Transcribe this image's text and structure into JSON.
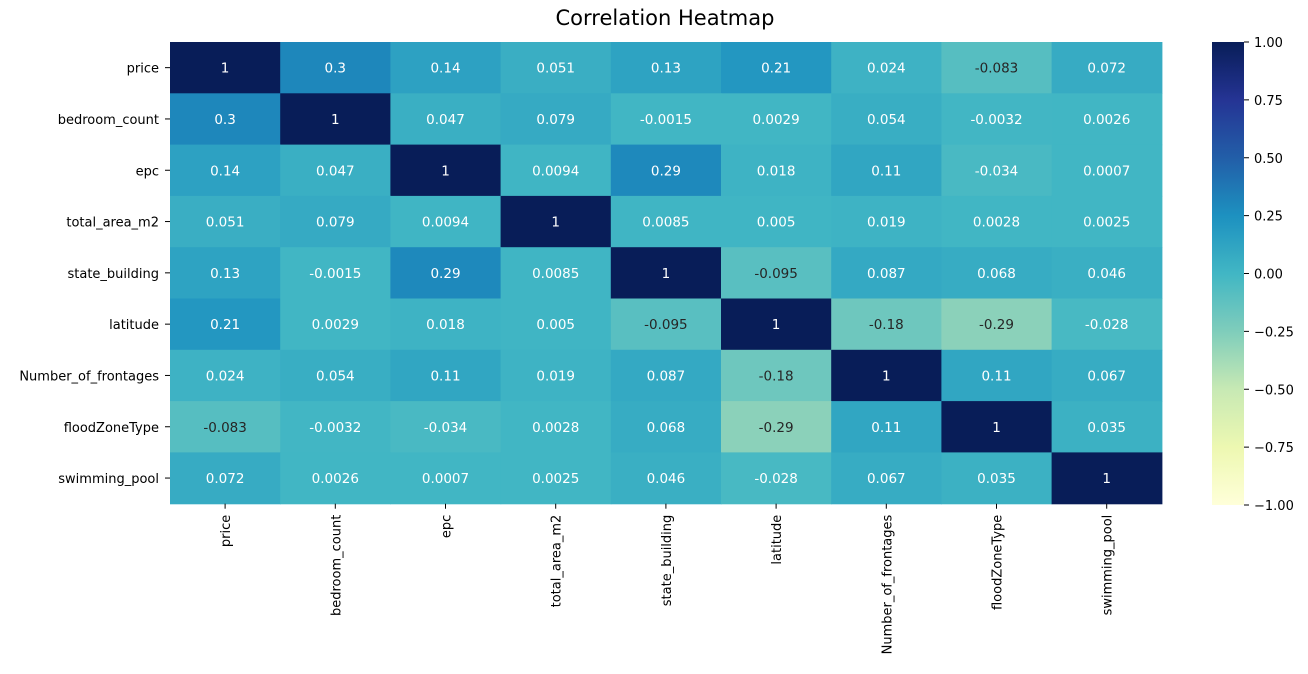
{
  "chart_data": {
    "type": "heatmap",
    "title": "Correlation Heatmap",
    "xlabel": "",
    "ylabel": "",
    "rows": [
      "price",
      "bedroom_count",
      "epc",
      "total_area_m2",
      "state_building",
      "latitude",
      "Number_of_frontages",
      "floodZoneType",
      "swimming_pool"
    ],
    "columns": [
      "price",
      "bedroom_count",
      "epc",
      "total_area_m2",
      "state_building",
      "latitude",
      "Number_of_frontages",
      "floodZoneType",
      "swimming_pool"
    ],
    "values": [
      [
        1,
        0.3,
        0.14,
        0.051,
        0.13,
        0.21,
        0.024,
        -0.083,
        0.072
      ],
      [
        0.3,
        1,
        0.047,
        0.079,
        -0.0015,
        0.0029,
        0.054,
        -0.0032,
        0.0026
      ],
      [
        0.14,
        0.047,
        1,
        0.0094,
        0.29,
        0.018,
        0.11,
        -0.034,
        0.0007
      ],
      [
        0.051,
        0.079,
        0.0094,
        1,
        0.0085,
        0.005,
        0.019,
        0.0028,
        0.0025
      ],
      [
        0.13,
        -0.0015,
        0.29,
        0.0085,
        1,
        -0.095,
        0.087,
        0.068,
        0.046
      ],
      [
        0.21,
        0.0029,
        0.018,
        0.005,
        -0.095,
        1,
        -0.18,
        -0.29,
        -0.028
      ],
      [
        0.024,
        0.054,
        0.11,
        0.019,
        0.087,
        -0.18,
        1,
        0.11,
        0.067
      ],
      [
        -0.083,
        -0.0032,
        -0.034,
        0.0028,
        0.068,
        -0.29,
        0.11,
        1,
        0.035
      ],
      [
        0.072,
        0.0026,
        0.0007,
        0.0025,
        0.046,
        -0.028,
        0.067,
        0.035,
        1
      ]
    ],
    "labels": [
      [
        "1",
        "0.3",
        "0.14",
        "0.051",
        "0.13",
        "0.21",
        "0.024",
        "-0.083",
        "0.072"
      ],
      [
        "0.3",
        "1",
        "0.047",
        "0.079",
        "-0.0015",
        "0.0029",
        "0.054",
        "-0.0032",
        "0.0026"
      ],
      [
        "0.14",
        "0.047",
        "1",
        "0.0094",
        "0.29",
        "0.018",
        "0.11",
        "-0.034",
        "0.0007"
      ],
      [
        "0.051",
        "0.079",
        "0.0094",
        "1",
        "0.0085",
        "0.005",
        "0.019",
        "0.0028",
        "0.0025"
      ],
      [
        "0.13",
        "-0.0015",
        "0.29",
        "0.0085",
        "1",
        "-0.095",
        "0.087",
        "0.068",
        "0.046"
      ],
      [
        "0.21",
        "0.0029",
        "0.018",
        "0.005",
        "-0.095",
        "1",
        "-0.18",
        "-0.29",
        "-0.028"
      ],
      [
        "0.024",
        "0.054",
        "0.11",
        "0.019",
        "0.087",
        "-0.18",
        "1",
        "0.11",
        "0.067"
      ],
      [
        "-0.083",
        "-0.0032",
        "-0.034",
        "0.0028",
        "0.068",
        "-0.29",
        "0.11",
        "1",
        "0.035"
      ],
      [
        "0.072",
        "0.0026",
        "0.0007",
        "0.0025",
        "0.046",
        "-0.028",
        "0.067",
        "0.035",
        "1"
      ]
    ],
    "colormap": "YlGnBu",
    "vmin": -1,
    "vmax": 1,
    "colorbar": {
      "ticks": [
        1.0,
        0.75,
        0.5,
        0.25,
        0.0,
        -0.25,
        -0.5,
        -0.75,
        -1.0
      ],
      "tick_labels": [
        "1.00",
        "0.75",
        "0.50",
        "0.25",
        "0.00",
        "−0.25",
        "−0.50",
        "−0.75",
        "−1.00"
      ]
    },
    "annotation_colors": {
      "light": "#ffffff",
      "dark": "#262626"
    }
  }
}
